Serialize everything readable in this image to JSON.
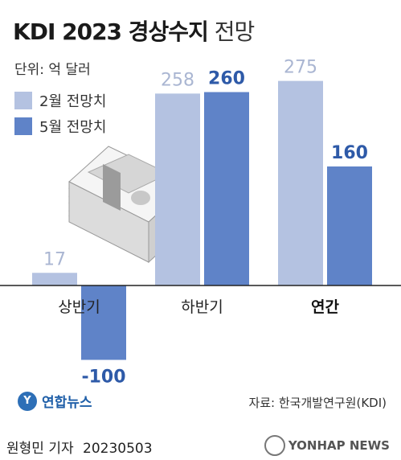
{
  "header": {
    "title_bold": "KDI 2023 경상수지",
    "title_light": "전망",
    "unit": "단위: 억 달러"
  },
  "legend": [
    {
      "label": "2월 전망치",
      "color": "#b4c2e1"
    },
    {
      "label": "5월 전망치",
      "color": "#5f83c8"
    }
  ],
  "chart_data": {
    "type": "bar",
    "title": "KDI 2023 경상수지 전망",
    "categories": [
      "상반기",
      "하반기",
      "연간"
    ],
    "series": [
      {
        "name": "2월 전망치",
        "values": [
          17,
          258,
          275
        ],
        "labels": [
          "17",
          "258",
          "275"
        ],
        "color": "#b4c2e1"
      },
      {
        "name": "5월 전망치",
        "values": [
          -100,
          260,
          160
        ],
        "labels": [
          "-100",
          "260",
          "160"
        ],
        "color": "#5f83c8"
      }
    ],
    "ylim": [
      -100,
      275
    ],
    "grid": false,
    "legend_position": "top-left"
  },
  "footer": {
    "logo_text": "연합뉴스",
    "source": "자료: 한국개발연구원(KDI)",
    "byline": "원형민 기자",
    "date": "20230503",
    "watermark": "YONHAP NEWS"
  }
}
